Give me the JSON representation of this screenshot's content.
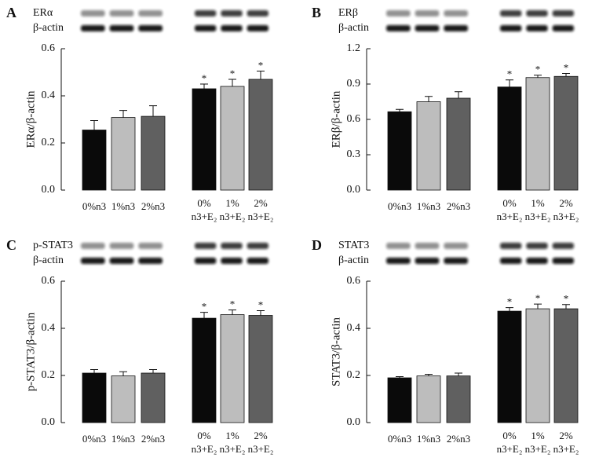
{
  "chart_data": [
    {
      "type": "bar",
      "panel": "A",
      "blot_labels": [
        "ERα",
        "β-actin"
      ],
      "ylabel": "ERα/β-actin",
      "categories": [
        "0%n3",
        "1%n3",
        "2%n3",
        "0%\nn3+E₂",
        "1%\nn3+E₂",
        "2%\nn3+E₂"
      ],
      "series": [
        {
          "values": [
            0.255,
            0.308,
            0.313,
            0.43,
            0.44,
            0.47
          ],
          "errors": [
            0.04,
            0.03,
            0.045,
            0.02,
            0.03,
            0.035
          ],
          "colors": [
            "#0a0a0a",
            "#bdbdbd",
            "#606060",
            "#0a0a0a",
            "#bdbdbd",
            "#606060"
          ]
        }
      ],
      "ylim": [
        0,
        0.6
      ],
      "yticks": [
        {
          "value": 0,
          "label": "0.0"
        },
        0.2,
        0.4,
        0.6
      ],
      "annotations": [
        {
          "x": "0%\nn3+E₂",
          "text": "*"
        },
        {
          "x": "1%\nn3+E₂",
          "text": "*"
        },
        {
          "x": "2%\nn3+E₂",
          "text": "*"
        }
      ]
    },
    {
      "type": "bar",
      "panel": "B",
      "blot_labels": [
        "ERβ",
        "β-actin"
      ],
      "ylabel": "ERβ/β-actin",
      "categories": [
        "0%n3",
        "1%n3",
        "2%n3",
        "0%\nn3+E₂",
        "1%\nn3+E₂",
        "2%\nn3+E₂"
      ],
      "series": [
        {
          "values": [
            0.665,
            0.75,
            0.78,
            0.875,
            0.955,
            0.965
          ],
          "errors": [
            0.02,
            0.045,
            0.055,
            0.06,
            0.02,
            0.025
          ],
          "colors": [
            "#0a0a0a",
            "#bdbdbd",
            "#606060",
            "#0a0a0a",
            "#bdbdbd",
            "#606060"
          ]
        }
      ],
      "ylim": [
        0,
        1.2
      ],
      "yticks": [
        {
          "value": 0,
          "label": "0.0"
        },
        0.3,
        0.6,
        0.9,
        1.2
      ],
      "annotations": [
        {
          "x": "0%\nn3+E₂",
          "text": "*"
        },
        {
          "x": "1%\nn3+E₂",
          "text": "*"
        },
        {
          "x": "2%\nn3+E₂",
          "text": "*"
        }
      ]
    },
    {
      "type": "bar",
      "panel": "C",
      "blot_labels": [
        "p-STAT3",
        "β-actin"
      ],
      "ylabel": "p-STAT3/β-actin",
      "categories": [
        "0%n3",
        "1%n3",
        "2%n3",
        "0%\nn3+E₂",
        "1%\nn3+E₂",
        "2%\nn3+E₂"
      ],
      "series": [
        {
          "values": [
            0.21,
            0.198,
            0.21,
            0.443,
            0.458,
            0.455
          ],
          "errors": [
            0.015,
            0.018,
            0.015,
            0.025,
            0.02,
            0.02
          ],
          "colors": [
            "#0a0a0a",
            "#bdbdbd",
            "#606060",
            "#0a0a0a",
            "#bdbdbd",
            "#606060"
          ]
        }
      ],
      "ylim": [
        0,
        0.6
      ],
      "yticks": [
        {
          "value": 0,
          "label": "0.0"
        },
        0.2,
        0.4,
        0.6
      ],
      "annotations": [
        {
          "x": "0%\nn3+E₂",
          "text": "*"
        },
        {
          "x": "1%\nn3+E₂",
          "text": "*"
        },
        {
          "x": "2%\nn3+E₂",
          "text": "*"
        }
      ]
    },
    {
      "type": "bar",
      "panel": "D",
      "blot_labels": [
        "STAT3",
        "β-actin"
      ],
      "ylabel": "STAT3/β-actin",
      "categories": [
        "0%n3",
        "1%n3",
        "2%n3",
        "0%\nn3+E₂",
        "1%\nn3+E₂",
        "2%\nn3+E₂"
      ],
      "series": [
        {
          "values": [
            0.19,
            0.198,
            0.198,
            0.473,
            0.483,
            0.483
          ],
          "errors": [
            0.005,
            0.007,
            0.012,
            0.015,
            0.02,
            0.018
          ],
          "colors": [
            "#0a0a0a",
            "#bdbdbd",
            "#606060",
            "#0a0a0a",
            "#bdbdbd",
            "#606060"
          ]
        }
      ],
      "ylim": [
        0,
        0.6
      ],
      "yticks": [
        {
          "value": 0,
          "label": "0.0"
        },
        0.2,
        0.4,
        0.6
      ],
      "annotations": [
        {
          "x": "0%\nn3+E₂",
          "text": "*"
        },
        {
          "x": "1%\nn3+E₂",
          "text": "*"
        },
        {
          "x": "2%\nn3+E₂",
          "text": "*"
        }
      ]
    }
  ]
}
